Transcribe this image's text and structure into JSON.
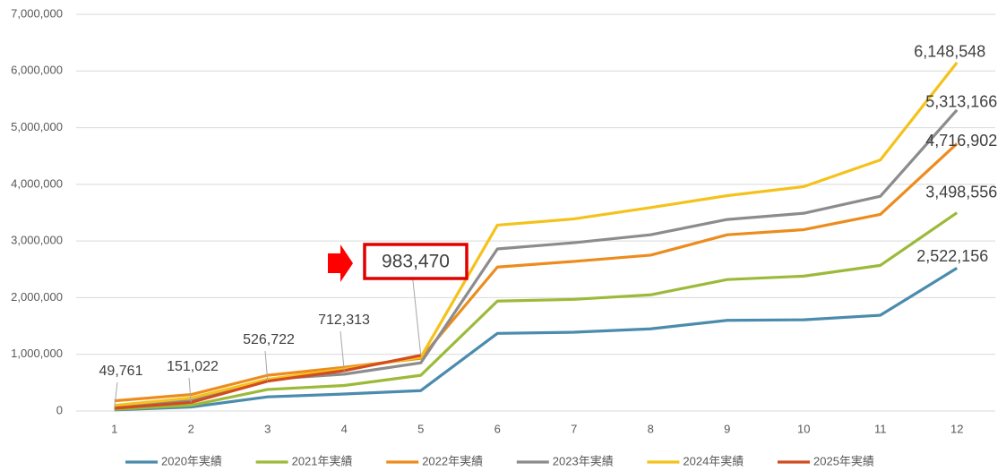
{
  "chart_data": {
    "type": "line",
    "categories": [
      1,
      2,
      3,
      4,
      5,
      6,
      7,
      8,
      9,
      10,
      11,
      12
    ],
    "ylim": [
      0,
      7000000
    ],
    "yticks": [
      {
        "value": 0,
        "label": "0"
      },
      {
        "value": 1000000,
        "label": "1,000,000"
      },
      {
        "value": 2000000,
        "label": "2,000,000"
      },
      {
        "value": 3000000,
        "label": "3,000,000"
      },
      {
        "value": 4000000,
        "label": "4,000,000"
      },
      {
        "value": 5000000,
        "label": "5,000,000"
      },
      {
        "value": 6000000,
        "label": "6,000,000"
      },
      {
        "value": 7000000,
        "label": "7,000,000"
      }
    ],
    "grid": true,
    "legend": "bottom",
    "series": [
      {
        "name": "2020年実績",
        "color": "#4a8bae",
        "values": [
          20000,
          70000,
          250000,
          300000,
          360000,
          1370000,
          1390000,
          1450000,
          1600000,
          1610000,
          1690000,
          2522156
        ],
        "value_labels": [
          null,
          null,
          null,
          null,
          null,
          null,
          null,
          null,
          null,
          null,
          null,
          "2,522,156"
        ]
      },
      {
        "name": "2021年実績",
        "color": "#9cba3a",
        "values": [
          30000,
          100000,
          380000,
          450000,
          630000,
          1940000,
          1970000,
          2050000,
          2320000,
          2380000,
          2570000,
          3498556
        ],
        "value_labels": [
          null,
          null,
          null,
          null,
          null,
          null,
          null,
          null,
          null,
          null,
          null,
          "3,498,556"
        ]
      },
      {
        "name": "2022年実績",
        "color": "#ec8c1e",
        "values": [
          180000,
          290000,
          630000,
          770000,
          930000,
          2540000,
          2640000,
          2750000,
          3110000,
          3200000,
          3470000,
          4716902
        ],
        "value_labels": [
          null,
          null,
          null,
          null,
          null,
          null,
          null,
          null,
          null,
          null,
          null,
          "4,716,902"
        ]
      },
      {
        "name": "2023年実績",
        "color": "#8c8c8c",
        "values": [
          80000,
          180000,
          560000,
          650000,
          850000,
          2860000,
          2970000,
          3110000,
          3380000,
          3490000,
          3790000,
          5313166
        ],
        "value_labels": [
          null,
          null,
          null,
          null,
          null,
          null,
          null,
          null,
          null,
          null,
          null,
          "5,313,166"
        ]
      },
      {
        "name": "2024年実績",
        "color": "#f4c21b",
        "values": [
          100000,
          230000,
          560000,
          740000,
          950000,
          3280000,
          3390000,
          3590000,
          3800000,
          3960000,
          4430000,
          6148548
        ],
        "value_labels": [
          null,
          null,
          null,
          null,
          null,
          null,
          null,
          null,
          null,
          null,
          null,
          "6,148,548"
        ]
      },
      {
        "name": "2025年実績",
        "color": "#d24c22",
        "values": [
          49761,
          151022,
          526722,
          712313,
          983470,
          null,
          null,
          null,
          null,
          null,
          null,
          null
        ],
        "value_labels": [
          "49,761",
          "151,022",
          "526,722",
          "712,313",
          "983,470",
          null,
          null,
          null,
          null,
          null,
          null,
          null
        ]
      }
    ]
  }
}
